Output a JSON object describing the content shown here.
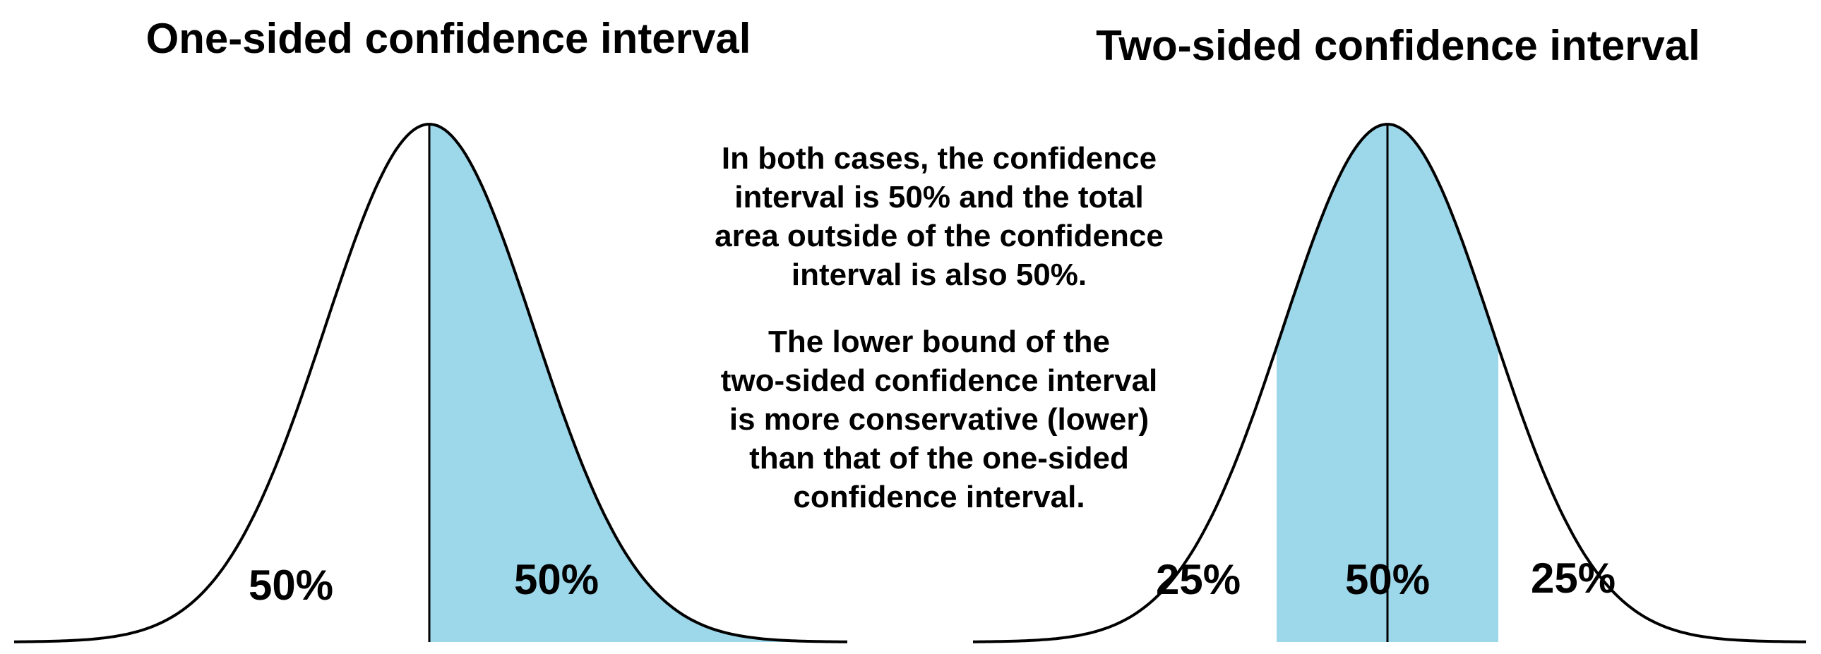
{
  "colors": {
    "background": "#ffffff",
    "shaded_region": "#9dd8ea",
    "curve": "#000000",
    "text": "#000000"
  },
  "left_panel": {
    "title": "One-sided confidence interval",
    "regions": [
      {
        "label": "50%",
        "shaded": false
      },
      {
        "label": "50%",
        "shaded": true
      }
    ]
  },
  "right_panel": {
    "title": "Two-sided confidence interval",
    "regions": [
      {
        "label": "25%",
        "shaded": false
      },
      {
        "label": "50%",
        "shaded": true
      },
      {
        "label": "25%",
        "shaded": false
      }
    ]
  },
  "notes": [
    {
      "lines": [
        "In both cases, the confidence",
        "interval is 50% and the total",
        "area outside of the confidence",
        "interval is also 50%."
      ]
    },
    {
      "lines": [
        "The lower bound of the",
        "two-sided confidence interval",
        "is more conservative (lower)",
        "than that of the one-sided",
        "confidence interval."
      ]
    }
  ]
}
